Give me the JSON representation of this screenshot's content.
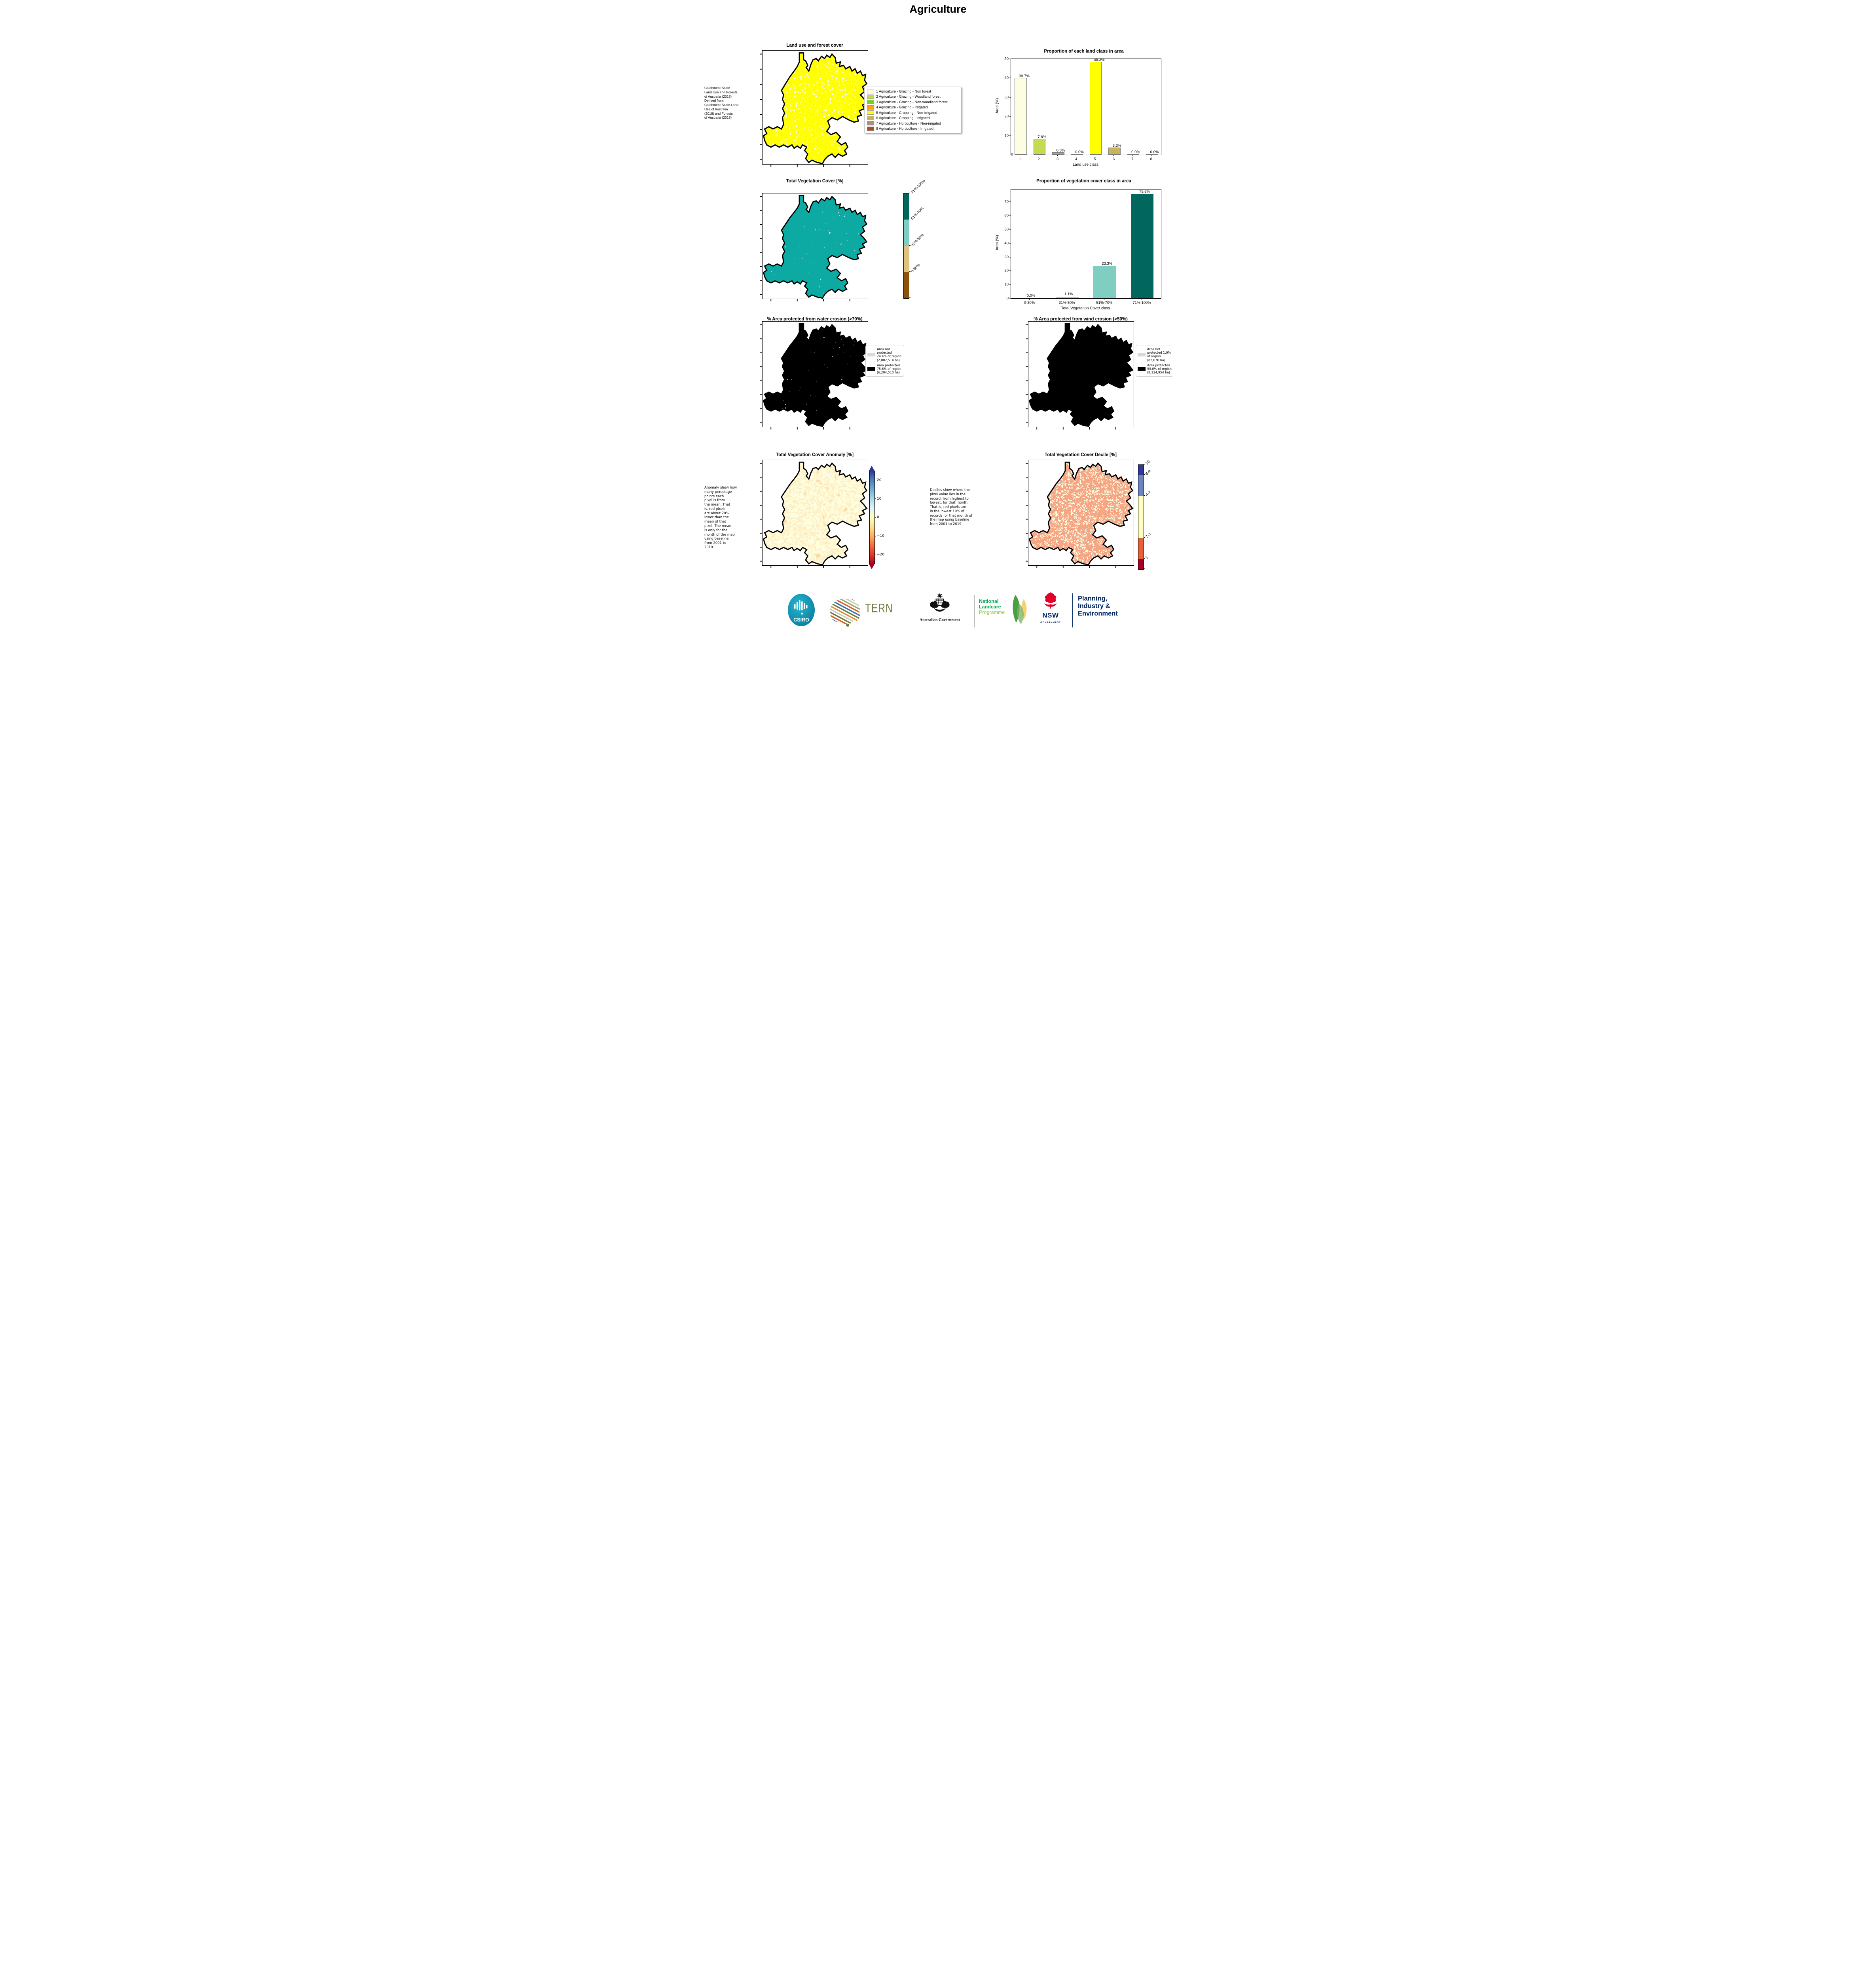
{
  "page_title": "Agriculture",
  "notes": {
    "land_use": " Catchment Scale\nLand Use and Forests\nof Australia (2018)\nDerived from\nCatchment Scale Land\nUse of Australia\n(2018) and Forests\nof Australia (2018)",
    "anomaly": "Anomaly show how\nmany percetage\npoints each\npixel is from\nthe mean. That\nis, red pixels\nare about 20%\nlower than the\nmean of that\npixel. The mean\nis only for the\nmonth of the map\nusing baseline\nfrom 2001 to\n2019.",
    "decile": "Deciles show where the\npixel value lies in the\nrecord, from highest to\nlowest, for that month.\nThat is, red pixels are\nin the lowest 10% of\nrecords for that month of\nthe map using baseline\nfrom 2001 to 2019."
  },
  "panels": {
    "land_use": {
      "title": "Land use and forest cover",
      "legend": [
        {
          "label": "1 Agriculture - Grazing - Non forest",
          "color": "#FDFDE1"
        },
        {
          "label": "2 Agriculture - Grazing - Woodland forest",
          "color": "#C5D952"
        },
        {
          "label": "3 Agriculture - Grazing - Non-woodland forest",
          "color": "#7FCE23"
        },
        {
          "label": "4 Agriculture - Grazing - Irrigated",
          "color": "#FFA405"
        },
        {
          "label": "5 Agriculture - Cropping - Non-irrigated",
          "color": "#FFFF00"
        },
        {
          "label": "6 Agriculture - Cropping - Irrigated",
          "color": "#C7B45B"
        },
        {
          "label": "7 Agriculture - Horticulture - Non-irrigated",
          "color": "#AF8D80"
        },
        {
          "label": "8 Agriculture - Horticulture - Irrigated",
          "color": "#A0522D"
        }
      ]
    },
    "land_chart": {
      "title": "Proportion of each land class in area",
      "ylabel": "Area (%)",
      "xlabel": "Land use class",
      "ymax": 50,
      "yticks": [
        0,
        10,
        20,
        30,
        40,
        50
      ],
      "categories": [
        "1",
        "2",
        "3",
        "4",
        "5",
        "6",
        "7",
        "8"
      ],
      "values": [
        39.7,
        7.8,
        0.8,
        0.0,
        48.2,
        3.3,
        0.0,
        0.0
      ],
      "labels": [
        "39.7%",
        "7.8%",
        "0.8%",
        "0.0%",
        "48.2%",
        "3.3%",
        "0.0%",
        "0.0%"
      ],
      "colors": [
        "#FDFDE1",
        "#C5D952",
        "#7FCE23",
        "#FFA405",
        "#FFFF00",
        "#C7B45B",
        "#AF8D80",
        "#A0522D"
      ]
    },
    "veg_map": {
      "title": "Total Vegetation Cover [%]",
      "colorbar": [
        {
          "label": "71%-100%",
          "color": "#01665E"
        },
        {
          "label": "51%-70%",
          "color": "#80CDC1"
        },
        {
          "label": "31%-50%",
          "color": "#DFC27D"
        },
        {
          "label": "0-30%",
          "color": "#8C510A"
        }
      ]
    },
    "veg_chart": {
      "title": "Proportion of vegetation cover class in area",
      "ylabel": "Area (%)",
      "xlabel": "Total Vegetation Cover class",
      "ymax": 79,
      "yticks": [
        0,
        10,
        20,
        30,
        40,
        50,
        60,
        70
      ],
      "categories": [
        "0-30%",
        "31%-50%",
        "51%-70%",
        "71%-100%"
      ],
      "values": [
        0.0,
        1.1,
        23.3,
        75.6
      ],
      "labels": [
        "0.0%",
        "1.1%",
        "23.3%",
        "75.6%"
      ],
      "colors": [
        "#8C510A",
        "#DFC27D",
        "#80CDC1",
        "#01665E"
      ]
    },
    "water": {
      "title": "% Area protected from water erosion (>70%)",
      "legend": [
        {
          "label": "Area not protected 24.4% of region (2,002,514 ha)",
          "color": "#D9D9D9"
        },
        {
          "label": "Area protected 75.6% of region (6,204,510 ha)",
          "color": "#000000"
        }
      ]
    },
    "wind": {
      "title": "% Area protected from wind erosion (>50%)",
      "legend": [
        {
          "label": "Area not protected 1.0% of region (82,070 ha)",
          "color": "#D9D9D9"
        },
        {
          "label": "Area protected 99.0% of region (8,124,954 ha)",
          "color": "#000000"
        }
      ]
    },
    "anomaly": {
      "title": "Total Vegetation Cover Anomaly [%]",
      "vmin": -25,
      "vmax": 25,
      "ticks": [
        {
          "v": 20,
          "label": "20"
        },
        {
          "v": 10,
          "label": "10"
        },
        {
          "v": 0,
          "label": "0"
        },
        {
          "v": -10,
          "label": "−10"
        },
        {
          "v": -20,
          "label": "−20"
        }
      ]
    },
    "decile": {
      "title": "Total Vegetation Cover Decile [%]",
      "classes": [
        {
          "label": "10",
          "color": "#343895"
        },
        {
          "label": "8-9",
          "color": "#6C85BF"
        },
        {
          "label": "4-7",
          "color": "#FEFEC0"
        },
        {
          "label": "2-3",
          "color": "#E8613B"
        },
        {
          "label": "1",
          "color": "#A50026"
        }
      ]
    }
  },
  "footer": {
    "csiro": "CSIRO",
    "tern": "TERN",
    "ausgov": "Australian Government",
    "landcare": [
      "National",
      "Landcare",
      "Programme"
    ],
    "nsw": "NSW",
    "nsw_sub": "GOVERNMENT",
    "agency": [
      "Planning,",
      "Industry &",
      "Environment"
    ]
  },
  "chart_data": [
    {
      "type": "bar",
      "title": "Proportion of each land class in area",
      "xlabel": "Land use class",
      "ylabel": "Area (%)",
      "ylim": [
        0,
        50
      ],
      "categories": [
        "1",
        "2",
        "3",
        "4",
        "5",
        "6",
        "7",
        "8"
      ],
      "values": [
        39.7,
        7.8,
        0.8,
        0.0,
        48.2,
        3.3,
        0.0,
        0.0
      ],
      "bar_colors": [
        "#FDFDE1",
        "#C5D952",
        "#7FCE23",
        "#FFA405",
        "#FFFF00",
        "#C7B45B",
        "#AF8D80",
        "#A0522D"
      ],
      "grid": false,
      "data_labels": [
        "39.7%",
        "7.8%",
        "0.8%",
        "0.0%",
        "48.2%",
        "3.3%",
        "0.0%",
        "0.0%"
      ]
    },
    {
      "type": "bar",
      "title": "Proportion of vegetation cover class in area",
      "xlabel": "Total Vegetation Cover class",
      "ylabel": "Area (%)",
      "ylim": [
        0,
        79
      ],
      "categories": [
        "0-30%",
        "31%-50%",
        "51%-70%",
        "71%-100%"
      ],
      "values": [
        0.0,
        1.1,
        23.3,
        75.6
      ],
      "bar_colors": [
        "#8C510A",
        "#DFC27D",
        "#80CDC1",
        "#01665E"
      ],
      "grid": false,
      "data_labels": [
        "0.0%",
        "1.1%",
        "23.3%",
        "75.6%"
      ]
    }
  ]
}
